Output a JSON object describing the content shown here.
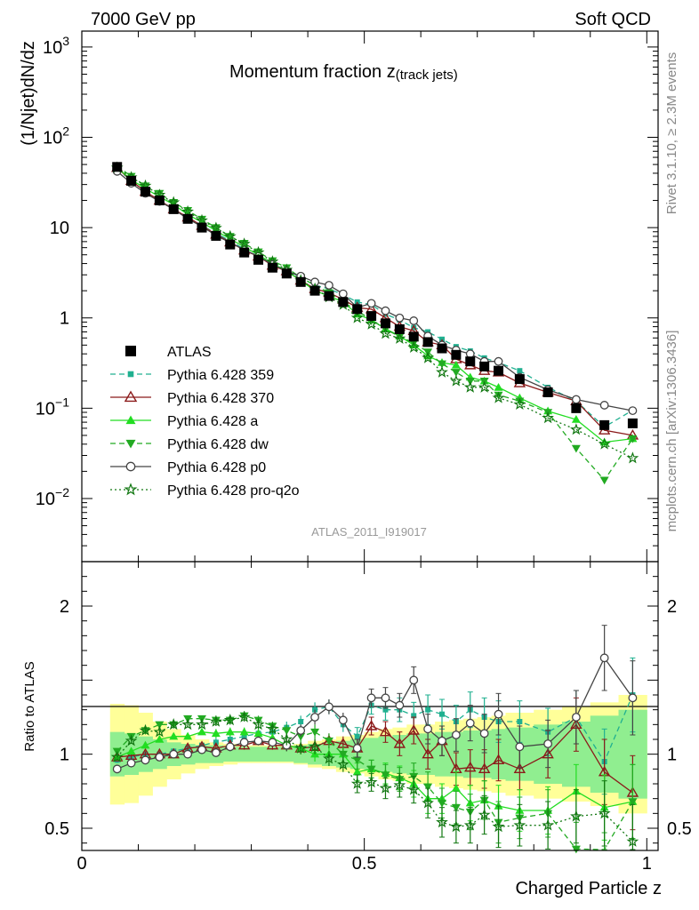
{
  "header": {
    "left": "7000 GeV pp",
    "right": "Soft QCD"
  },
  "side_labels": {
    "rivet": "Rivet 3.1.10, ≥ 2.3M events",
    "mcplots": "mcplots.cern.ch [arXiv:1306.3436]"
  },
  "analysis_id": "ATLAS_2011_I919017",
  "chart_data": [
    {
      "type": "line",
      "title": "Momentum fraction z",
      "title_sub": "(track jets)",
      "ylabel": "(1/Njet)dN/dz",
      "yscale": "log",
      "ylim": [
        0.002,
        1500
      ],
      "xlim": [
        0,
        1.02
      ],
      "yticks": [
        {
          "value": 1000,
          "base": "10",
          "exp": "3"
        },
        {
          "value": 100,
          "base": "10",
          "exp": "2"
        },
        {
          "value": 10,
          "base": "10",
          "exp": ""
        },
        {
          "value": 1,
          "base": "1",
          "exp": ""
        },
        {
          "value": 0.1,
          "base": "10",
          "exp": "−1"
        },
        {
          "value": 0.01,
          "base": "10",
          "exp": "−2"
        }
      ],
      "legend_position": "bottom-left",
      "x": [
        0.0625,
        0.0875,
        0.1125,
        0.1375,
        0.1625,
        0.1875,
        0.2125,
        0.2375,
        0.2625,
        0.2875,
        0.3125,
        0.3375,
        0.3625,
        0.3875,
        0.4125,
        0.4375,
        0.4625,
        0.4875,
        0.5125,
        0.5375,
        0.5625,
        0.5875,
        0.6125,
        0.6375,
        0.6625,
        0.6875,
        0.7125,
        0.7375,
        0.775,
        0.825,
        0.875,
        0.925,
        0.975
      ],
      "series": [
        {
          "name": "ATLAS",
          "color": "#000000",
          "marker": "square-filled",
          "dash": "",
          "values": [
            47,
            33,
            25,
            20,
            16,
            12.5,
            10,
            8.1,
            6.5,
            5.3,
            4.4,
            3.6,
            3.1,
            2.5,
            2.0,
            1.75,
            1.5,
            1.25,
            1.05,
            0.87,
            0.75,
            0.62,
            0.54,
            0.46,
            0.39,
            0.33,
            0.29,
            0.26,
            0.21,
            0.15,
            0.1,
            0.065,
            0.068
          ]
        },
        {
          "name": "Pythia 6.428 359",
          "color": "#20B090",
          "marker": "square-filled-small",
          "dash": "6,4",
          "values": [
            45,
            33,
            25,
            20,
            16,
            13,
            10.5,
            8.7,
            7.1,
            5.8,
            4.8,
            3.9,
            3.4,
            2.8,
            2.3,
            2.1,
            1.8,
            1.5,
            1.4,
            1.1,
            0.95,
            0.78,
            0.7,
            0.58,
            0.48,
            0.43,
            0.36,
            0.32,
            0.26,
            0.17,
            0.12,
            0.062,
            0.095
          ]
        },
        {
          "name": "Pythia 6.428 370",
          "color": "#8B1A1A",
          "marker": "triangle-open",
          "dash": "",
          "values": [
            46,
            33,
            25,
            20,
            16,
            13,
            10.5,
            8.4,
            6.9,
            5.6,
            4.8,
            3.8,
            3.3,
            2.6,
            2.1,
            1.9,
            1.6,
            1.3,
            1.25,
            1.0,
            0.8,
            0.72,
            0.54,
            0.5,
            0.35,
            0.3,
            0.26,
            0.25,
            0.19,
            0.15,
            0.12,
            0.057,
            0.05
          ]
        },
        {
          "name": "Pythia 6.428 a",
          "color": "#22DD22",
          "marker": "triangle-filled",
          "dash": "",
          "values": [
            46,
            34,
            27,
            22,
            18,
            14,
            11.5,
            9.2,
            7.5,
            6.1,
            5.0,
            4.0,
            3.3,
            2.6,
            2.0,
            1.75,
            1.5,
            1.1,
            0.95,
            0.76,
            0.63,
            0.5,
            0.38,
            0.32,
            0.3,
            0.22,
            0.2,
            0.17,
            0.13,
            0.093,
            0.075,
            0.042,
            0.046
          ]
        },
        {
          "name": "Pythia 6.428 dw",
          "color": "#22AA22",
          "marker": "triangle-down-filled",
          "dash": "6,4",
          "values": [
            48,
            37,
            29,
            24,
            19,
            15.5,
            12.4,
            10,
            8,
            6.7,
            5.4,
            4.3,
            3.6,
            2.8,
            2.3,
            1.9,
            1.5,
            1.2,
            0.95,
            0.75,
            0.62,
            0.53,
            0.42,
            0.31,
            0.25,
            0.2,
            0.2,
            0.14,
            0.12,
            0.09,
            0.036,
            0.016,
            0.046
          ]
        },
        {
          "name": "Pythia 6.428 p0",
          "color": "#444444",
          "marker": "circle-open",
          "dash": "",
          "values": [
            42,
            31,
            24,
            19.5,
            16,
            12.5,
            10.3,
            8.2,
            6.8,
            5.7,
            4.8,
            3.9,
            3.3,
            2.9,
            2.5,
            2.3,
            1.85,
            1.3,
            1.45,
            1.2,
            1.0,
            0.93,
            0.63,
            0.5,
            0.44,
            0.4,
            0.33,
            0.33,
            0.22,
            0.16,
            0.125,
            0.108,
            0.094
          ]
        },
        {
          "name": "Pythia 6.428 pro-q2o",
          "color": "#117711",
          "marker": "star-open",
          "dash": "2,3",
          "values": [
            46,
            36,
            29,
            23,
            19,
            15,
            12,
            9.9,
            8,
            6.6,
            5.3,
            4.2,
            3.4,
            2.6,
            2.1,
            1.7,
            1.4,
            1.0,
            0.85,
            0.67,
            0.59,
            0.47,
            0.36,
            0.25,
            0.2,
            0.17,
            0.17,
            0.13,
            0.11,
            0.078,
            0.058,
            0.04,
            0.028
          ]
        }
      ]
    },
    {
      "type": "line",
      "ylabel": "Ratio to ATLAS",
      "xlabel": "Charged Particle z",
      "xlim": [
        0,
        1.02
      ],
      "ylim": [
        0.35,
        2.3
      ],
      "xticks": [
        {
          "value": 0,
          "label": "0"
        },
        {
          "value": 0.5,
          "label": "0.5"
        },
        {
          "value": 1,
          "label": "1"
        }
      ],
      "yticks": [
        {
          "value": 2,
          "label": "2"
        },
        {
          "value": 1,
          "label": "1"
        },
        {
          "value": 0.5,
          "label": "0.5"
        }
      ],
      "band_inner_color": "#90EE90",
      "band_outer_color": "#FFFF99",
      "x": [
        0.0625,
        0.0875,
        0.1125,
        0.1375,
        0.1625,
        0.1875,
        0.2125,
        0.2375,
        0.2625,
        0.2875,
        0.3125,
        0.3375,
        0.3625,
        0.3875,
        0.4125,
        0.4375,
        0.4625,
        0.4875,
        0.5125,
        0.5375,
        0.5625,
        0.5875,
        0.6125,
        0.6375,
        0.6625,
        0.6875,
        0.7125,
        0.7375,
        0.775,
        0.825,
        0.875,
        0.925,
        0.975
      ],
      "x_edges": [
        0.05,
        0.075,
        0.1,
        0.125,
        0.15,
        0.175,
        0.2,
        0.225,
        0.25,
        0.275,
        0.3,
        0.325,
        0.35,
        0.375,
        0.4,
        0.425,
        0.45,
        0.475,
        0.5,
        0.525,
        0.55,
        0.575,
        0.6,
        0.625,
        0.65,
        0.675,
        0.7,
        0.725,
        0.75,
        0.8,
        0.85,
        0.9,
        0.95,
        1.0
      ],
      "band_inner": [
        0.15,
        0.14,
        0.12,
        0.1,
        0.08,
        0.07,
        0.06,
        0.06,
        0.05,
        0.05,
        0.05,
        0.05,
        0.05,
        0.06,
        0.07,
        0.08,
        0.09,
        0.1,
        0.11,
        0.12,
        0.13,
        0.14,
        0.14,
        0.15,
        0.15,
        0.16,
        0.16,
        0.17,
        0.18,
        0.2,
        0.22,
        0.26,
        0.3
      ],
      "band_outer": [
        0.34,
        0.33,
        0.28,
        0.22,
        0.17,
        0.13,
        0.1,
        0.08,
        0.07,
        0.06,
        0.06,
        0.06,
        0.06,
        0.07,
        0.09,
        0.1,
        0.12,
        0.13,
        0.15,
        0.17,
        0.18,
        0.2,
        0.2,
        0.22,
        0.23,
        0.24,
        0.25,
        0.26,
        0.28,
        0.3,
        0.32,
        0.35,
        0.4
      ],
      "series": [
        {
          "name": "Pythia 6.428 359",
          "color": "#20B090",
          "marker": "square-filled-small",
          "dash": "6,4",
          "values": [
            0.96,
            0.98,
            1.0,
            1.0,
            1.02,
            1.04,
            1.06,
            1.08,
            1.1,
            1.12,
            1.14,
            1.15,
            1.18,
            1.22,
            1.3,
            1.32,
            1.2,
            1.12,
            1.33,
            1.3,
            1.3,
            1.26,
            1.3,
            1.27,
            1.22,
            1.3,
            1.25,
            1.22,
            1.22,
            1.15,
            1.25,
            0.95,
            1.4
          ],
          "errors": [
            0.02,
            0.02,
            0.02,
            0.02,
            0.02,
            0.02,
            0.02,
            0.03,
            0.03,
            0.03,
            0.03,
            0.03,
            0.04,
            0.04,
            0.05,
            0.05,
            0.05,
            0.06,
            0.06,
            0.07,
            0.08,
            0.09,
            0.1,
            0.1,
            0.11,
            0.12,
            0.13,
            0.14,
            0.14,
            0.16,
            0.18,
            0.22,
            0.25
          ]
        },
        {
          "name": "Pythia 6.428 370",
          "color": "#8B1A1A",
          "marker": "triangle-open",
          "dash": "",
          "values": [
            0.98,
            0.99,
            1.0,
            1.0,
            1.0,
            1.04,
            1.05,
            1.04,
            1.06,
            1.06,
            1.09,
            1.06,
            1.06,
            1.04,
            1.05,
            1.09,
            1.07,
            1.04,
            1.19,
            1.15,
            1.07,
            1.16,
            1.0,
            1.09,
            0.9,
            0.91,
            0.9,
            0.96,
            0.9,
            1.0,
            1.2,
            0.88,
            0.74
          ],
          "errors": [
            0.02,
            0.02,
            0.02,
            0.02,
            0.02,
            0.02,
            0.02,
            0.03,
            0.03,
            0.03,
            0.03,
            0.03,
            0.04,
            0.04,
            0.05,
            0.05,
            0.05,
            0.06,
            0.06,
            0.07,
            0.08,
            0.09,
            0.1,
            0.1,
            0.11,
            0.12,
            0.13,
            0.14,
            0.14,
            0.16,
            0.18,
            0.22,
            0.25
          ]
        },
        {
          "name": "Pythia 6.428 a",
          "color": "#22DD22",
          "marker": "triangle-filled",
          "dash": "",
          "values": [
            0.98,
            1.02,
            1.06,
            1.1,
            1.12,
            1.12,
            1.15,
            1.14,
            1.15,
            1.15,
            1.14,
            1.11,
            1.06,
            1.04,
            1.0,
            1.0,
            1.0,
            0.88,
            0.9,
            0.87,
            0.84,
            0.8,
            0.7,
            0.7,
            0.77,
            0.67,
            0.69,
            0.65,
            0.62,
            0.62,
            0.75,
            0.64,
            0.68
          ],
          "errors": [
            0.02,
            0.02,
            0.02,
            0.02,
            0.02,
            0.02,
            0.02,
            0.03,
            0.03,
            0.03,
            0.03,
            0.03,
            0.04,
            0.04,
            0.05,
            0.05,
            0.05,
            0.06,
            0.06,
            0.07,
            0.08,
            0.09,
            0.1,
            0.1,
            0.11,
            0.12,
            0.13,
            0.14,
            0.14,
            0.16,
            0.18,
            0.22,
            0.25
          ]
        },
        {
          "name": "Pythia 6.428 dw",
          "color": "#22AA22",
          "marker": "triangle-down-filled",
          "dash": "6,4",
          "values": [
            1.02,
            1.12,
            1.16,
            1.2,
            1.2,
            1.24,
            1.24,
            1.23,
            1.23,
            1.26,
            1.23,
            1.19,
            1.16,
            1.12,
            1.15,
            1.09,
            1.0,
            0.96,
            0.9,
            0.86,
            0.83,
            0.85,
            0.78,
            0.67,
            0.64,
            0.61,
            0.69,
            0.54,
            0.57,
            0.6,
            0.36,
            0.25,
            0.68
          ],
          "errors": [
            0.02,
            0.02,
            0.02,
            0.02,
            0.02,
            0.02,
            0.02,
            0.03,
            0.03,
            0.03,
            0.03,
            0.03,
            0.04,
            0.04,
            0.05,
            0.05,
            0.05,
            0.06,
            0.06,
            0.07,
            0.08,
            0.09,
            0.1,
            0.1,
            0.11,
            0.12,
            0.13,
            0.14,
            0.14,
            0.16,
            0.18,
            0.22,
            0.25
          ]
        },
        {
          "name": "Pythia 6.428 p0",
          "color": "#444444",
          "marker": "circle-open",
          "dash": "",
          "values": [
            0.9,
            0.94,
            0.96,
            0.98,
            1.0,
            1.0,
            1.03,
            1.01,
            1.05,
            1.08,
            1.09,
            1.08,
            1.06,
            1.16,
            1.25,
            1.32,
            1.23,
            1.04,
            1.38,
            1.38,
            1.33,
            1.5,
            1.17,
            1.09,
            1.13,
            1.21,
            1.14,
            1.27,
            1.05,
            1.07,
            1.25,
            1.65,
            1.38
          ],
          "errors": [
            0.02,
            0.02,
            0.02,
            0.02,
            0.02,
            0.02,
            0.02,
            0.03,
            0.03,
            0.03,
            0.03,
            0.03,
            0.04,
            0.04,
            0.05,
            0.05,
            0.05,
            0.06,
            0.06,
            0.07,
            0.08,
            0.09,
            0.1,
            0.1,
            0.11,
            0.12,
            0.13,
            0.14,
            0.14,
            0.16,
            0.18,
            0.22,
            0.25
          ]
        },
        {
          "name": "Pythia 6.428 pro-q2o",
          "color": "#117711",
          "marker": "star-open",
          "dash": "2,3",
          "values": [
            0.98,
            1.09,
            1.16,
            1.15,
            1.2,
            1.2,
            1.2,
            1.22,
            1.23,
            1.25,
            1.2,
            1.17,
            1.1,
            1.04,
            1.05,
            0.97,
            0.93,
            0.8,
            0.81,
            0.77,
            0.79,
            0.76,
            0.67,
            0.54,
            0.51,
            0.52,
            0.59,
            0.51,
            0.52,
            0.52,
            0.58,
            0.6,
            0.41
          ],
          "errors": [
            0.02,
            0.02,
            0.02,
            0.02,
            0.02,
            0.02,
            0.02,
            0.03,
            0.03,
            0.03,
            0.03,
            0.03,
            0.04,
            0.04,
            0.05,
            0.05,
            0.05,
            0.06,
            0.06,
            0.07,
            0.08,
            0.09,
            0.1,
            0.1,
            0.11,
            0.12,
            0.13,
            0.14,
            0.14,
            0.16,
            0.18,
            0.22,
            0.25
          ]
        }
      ]
    }
  ]
}
